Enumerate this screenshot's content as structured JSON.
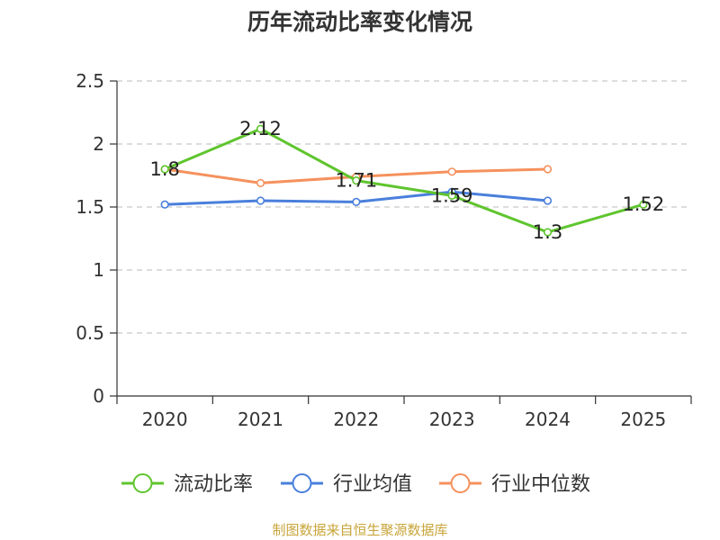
{
  "chart_data": {
    "type": "line",
    "title": "历年流动比率变化情况",
    "categories": [
      "2020",
      "2021",
      "2022",
      "2023",
      "2024",
      "2025"
    ],
    "ylim": [
      0,
      2.5
    ],
    "yticks": [
      "0",
      "0.5",
      "1",
      "1.5",
      "2",
      "2.5"
    ],
    "series": [
      {
        "name": "流动比率",
        "color": "#5fc52e",
        "values": [
          1.8,
          2.12,
          1.71,
          1.59,
          1.3,
          1.52
        ],
        "labels": [
          "1.8",
          "2.12",
          "1.71",
          "1.59",
          "1.3",
          "1.52"
        ]
      },
      {
        "name": "行业均值",
        "color": "#4a7fdc",
        "values": [
          1.52,
          1.55,
          1.54,
          1.62,
          1.55,
          null
        ]
      },
      {
        "name": "行业中位数",
        "color": "#f5915d",
        "values": [
          1.8,
          1.69,
          1.74,
          1.78,
          1.8,
          null
        ]
      }
    ],
    "legend_position": "bottom",
    "grid": true
  },
  "source": "制图数据来自恒生聚源数据库"
}
